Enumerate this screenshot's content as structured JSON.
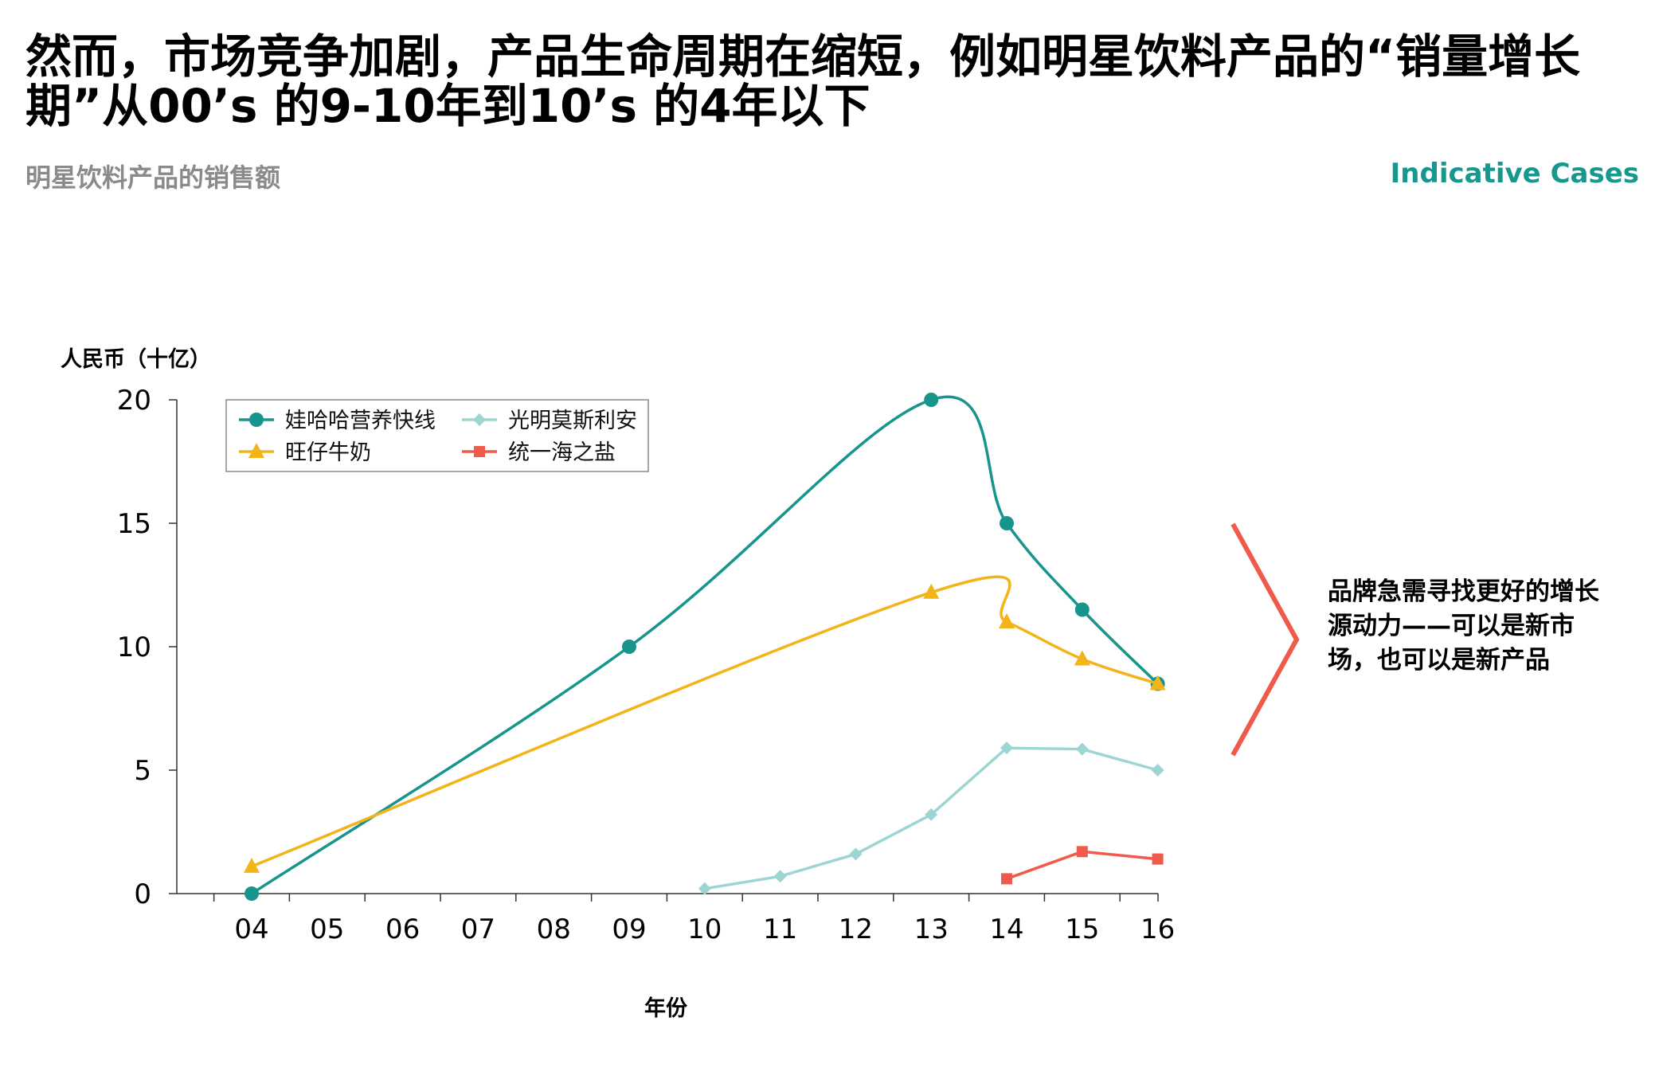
{
  "page": {
    "title": "然而，市场竞争加剧，产品生命周期在缩短，例如明星饮料产品的“销量增长期”从00’s 的9-10年到10’s 的4年以下",
    "subtitle": "明星饮料产品的销售额",
    "tag": "Indicative Cases",
    "note": "品牌急需寻找更好的增长源动力——可以是新市场，也可以是新产品"
  },
  "colors": {
    "teal": "#17958c",
    "gold": "#f2b418",
    "lightblue": "#9dd5d2",
    "red": "#ef5a4a",
    "tag": "#17988f"
  },
  "chart_data": {
    "type": "line",
    "title": "明星饮料产品的销售额",
    "xlabel": "年份",
    "ylabel": "人民币（十亿）",
    "categories": [
      "04",
      "05",
      "06",
      "07",
      "08",
      "09",
      "10",
      "11",
      "12",
      "13",
      "14",
      "15",
      "16"
    ],
    "ylim": [
      0,
      20
    ],
    "yticks": [
      "0",
      "5",
      "10",
      "15",
      "20"
    ],
    "legend_position": "top-left",
    "series": [
      {
        "name": "娃哈哈营养快线",
        "color": "#17958c",
        "marker": "circle",
        "smooth": true,
        "points": [
          {
            "x": "04",
            "y": 0
          },
          {
            "x": "09",
            "y": 10
          },
          {
            "x": "13",
            "y": 20
          },
          {
            "x": "14",
            "y": 15
          },
          {
            "x": "15",
            "y": 11.5
          },
          {
            "x": "16",
            "y": 8.5
          }
        ]
      },
      {
        "name": "旺仔牛奶",
        "color": "#f2b418",
        "marker": "triangle",
        "smooth": true,
        "points": [
          {
            "x": "04",
            "y": 1.1
          },
          {
            "x": "13",
            "y": 12.2
          },
          {
            "x": "14",
            "y": 11
          },
          {
            "x": "15",
            "y": 9.5
          },
          {
            "x": "16",
            "y": 8.5
          }
        ]
      },
      {
        "name": "光明莫斯利安",
        "color": "#9dd5d2",
        "marker": "diamond",
        "smooth": false,
        "points": [
          {
            "x": "10",
            "y": 0.2
          },
          {
            "x": "11",
            "y": 0.7
          },
          {
            "x": "12",
            "y": 1.6
          },
          {
            "x": "13",
            "y": 3.2
          },
          {
            "x": "14",
            "y": 5.9
          },
          {
            "x": "15",
            "y": 5.85
          },
          {
            "x": "16",
            "y": 5
          }
        ]
      },
      {
        "name": "统一海之盐",
        "color": "#ef5a4a",
        "marker": "square",
        "smooth": false,
        "points": [
          {
            "x": "14",
            "y": 0.6
          },
          {
            "x": "15",
            "y": 1.7
          },
          {
            "x": "16",
            "y": 1.4
          }
        ]
      }
    ]
  }
}
